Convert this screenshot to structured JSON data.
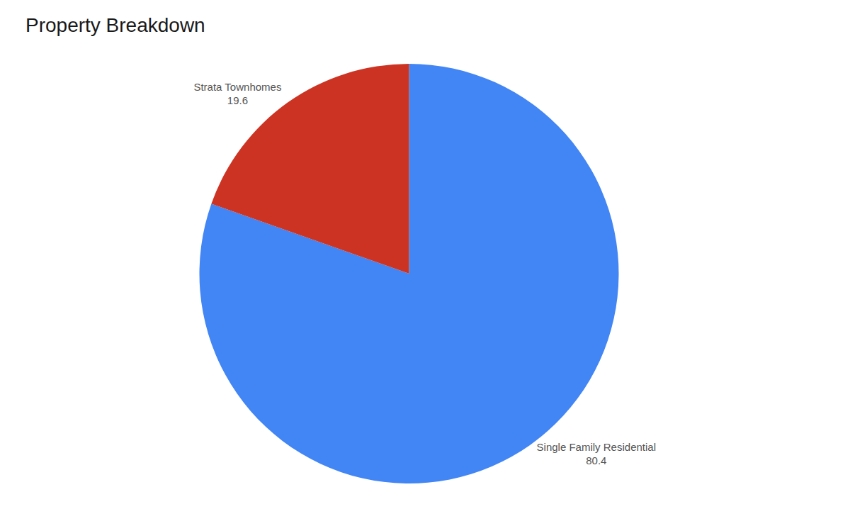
{
  "chart_data": {
    "type": "pie",
    "title": "Property Breakdown",
    "categories": [
      "Single Family Residential",
      "Strata Townhomes"
    ],
    "values": [
      80.4,
      19.6
    ],
    "colors": [
      "#4285F4",
      "#CC3322"
    ],
    "data_labels": true
  }
}
